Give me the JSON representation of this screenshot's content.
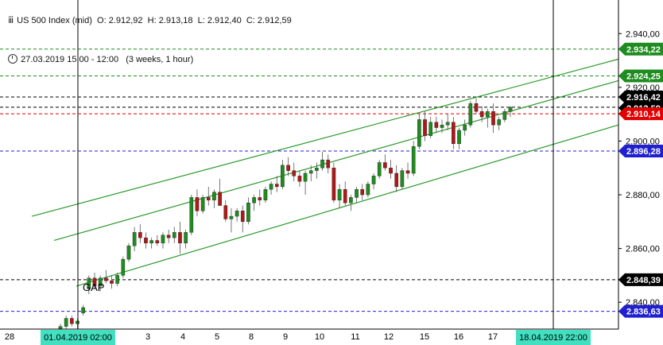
{
  "header": {
    "icon": "candlestick-icon",
    "instrument": "US 500 Index (mid)",
    "open": "O: 2.912,92",
    "high": "H: 2.913,18",
    "low": "L: 2.912,40",
    "close": "C: 2.912,59"
  },
  "range": {
    "icon": "clock-icon",
    "dates": "27.03.2019 15:00 - 12:00",
    "period": "(3 weeks, 1 hour)"
  },
  "annotation": {
    "gap_label": "GAP"
  },
  "chart_data": {
    "type": "candlestick",
    "ylim": [
      2830,
      2946
    ],
    "y_ticks": [
      {
        "value": 2940,
        "label": "2.940,00"
      },
      {
        "value": 2920,
        "label": "2.920,00"
      },
      {
        "value": 2900,
        "label": "2.900,00"
      },
      {
        "value": 2880,
        "label": "2.880,00"
      },
      {
        "value": 2860,
        "label": "2.860,00"
      },
      {
        "value": 2840,
        "label": "2.840,00"
      }
    ],
    "x_ticks": [
      "28",
      "3",
      "4",
      "5",
      "8",
      "9",
      "10",
      "11",
      "12",
      "15",
      "16",
      "17"
    ],
    "x_markers": [
      {
        "label": "01.04.2019 02:00",
        "color": "#40e0c0"
      },
      {
        "label": "18.04.2019 22:00",
        "color": "#40e0c0"
      }
    ],
    "price_levels": [
      {
        "value": 2934.22,
        "label": "2.934,22",
        "line_color": "#1e8c1e",
        "tag_color": "#1e8c1e"
      },
      {
        "value": 2924.25,
        "label": "2.924,25",
        "line_color": "#1e8c1e",
        "tag_color": "#1e8c1e"
      },
      {
        "value": 2916.42,
        "label": "2.916,42",
        "line_color": "#000000",
        "tag_color": "#000000"
      },
      {
        "value": 2912.59,
        "label": "2.912,59",
        "line_color": "#000000",
        "tag_color": "#000000"
      },
      {
        "value": 2910.14,
        "label": "2.910,14",
        "line_color": "#e00000",
        "tag_color": "#e00000"
      },
      {
        "value": 2896.28,
        "label": "2.896,28",
        "line_color": "#2020d0",
        "tag_color": "#2020d0"
      },
      {
        "value": 2848.39,
        "label": "2.848,39",
        "line_color": "#000000",
        "tag_color": "#000000"
      },
      {
        "value": 2836.63,
        "label": "2.836,63",
        "line_color": "#2020d0",
        "tag_color": "#2020d0"
      }
    ],
    "trend_channel": [
      {
        "from": [
          "01.04",
          2872.0
        ],
        "to": [
          "18.04",
          2930.5
        ],
        "color": "#2a9a2a"
      },
      {
        "from": [
          "01.04",
          2863.0
        ],
        "to": [
          "18.04",
          2922.5
        ],
        "color": "#2a9a2a"
      },
      {
        "from": [
          "01.04",
          2846.0
        ],
        "to": [
          "18.04",
          2906.0
        ],
        "color": "#2a9a2a"
      }
    ],
    "candles": {
      "bull_color": "#1e8c1e",
      "bear_color": "#b01818",
      "series": [
        [
          2830,
          2832,
          2829,
          2831
        ],
        [
          2831,
          2835,
          2830,
          2834
        ],
        [
          2834,
          2835,
          2831,
          2832
        ],
        [
          2832,
          2834,
          2830,
          2833
        ],
        [
          2836,
          2839,
          2835,
          2838
        ],
        [
          2845,
          2850,
          2843,
          2849
        ],
        [
          2849,
          2851,
          2845,
          2846
        ],
        [
          2846,
          2850,
          2844,
          2849
        ],
        [
          2849,
          2852,
          2847,
          2848
        ],
        [
          2848,
          2850,
          2845,
          2847
        ],
        [
          2847,
          2851,
          2846,
          2850
        ],
        [
          2850,
          2857,
          2849,
          2856
        ],
        [
          2856,
          2862,
          2855,
          2861
        ],
        [
          2861,
          2868,
          2859,
          2866
        ],
        [
          2866,
          2869,
          2862,
          2864
        ],
        [
          2864,
          2866,
          2860,
          2862
        ],
        [
          2862,
          2864,
          2860,
          2863
        ],
        [
          2863,
          2865,
          2861,
          2862
        ],
        [
          2862,
          2866,
          2860,
          2865
        ],
        [
          2865,
          2867,
          2862,
          2864
        ],
        [
          2864,
          2868,
          2862,
          2866
        ],
        [
          2866,
          2870,
          2858,
          2862
        ],
        [
          2862,
          2867,
          2860,
          2866
        ],
        [
          2866,
          2880,
          2865,
          2879
        ],
        [
          2879,
          2882,
          2872,
          2874
        ],
        [
          2874,
          2880,
          2873,
          2879
        ],
        [
          2879,
          2883,
          2876,
          2878
        ],
        [
          2878,
          2882,
          2875,
          2881
        ],
        [
          2881,
          2886,
          2878,
          2876
        ],
        [
          2876,
          2878,
          2870,
          2871
        ],
        [
          2871,
          2875,
          2866,
          2872
        ],
        [
          2872,
          2875,
          2870,
          2874
        ],
        [
          2874,
          2876,
          2866,
          2870
        ],
        [
          2870,
          2879,
          2869,
          2877
        ],
        [
          2877,
          2880,
          2874,
          2879
        ],
        [
          2879,
          2882,
          2876,
          2878
        ],
        [
          2878,
          2883,
          2877,
          2882
        ],
        [
          2882,
          2885,
          2880,
          2884
        ],
        [
          2884,
          2887,
          2881,
          2883
        ],
        [
          2883,
          2893,
          2882,
          2891
        ],
        [
          2891,
          2894,
          2887,
          2889
        ],
        [
          2889,
          2892,
          2885,
          2887
        ],
        [
          2887,
          2889,
          2883,
          2885
        ],
        [
          2885,
          2889,
          2880,
          2888
        ],
        [
          2888,
          2891,
          2885,
          2889
        ],
        [
          2889,
          2892,
          2886,
          2890
        ],
        [
          2890,
          2896,
          2889,
          2893
        ],
        [
          2893,
          2895,
          2888,
          2890
        ],
        [
          2890,
          2892,
          2877,
          2878
        ],
        [
          2878,
          2884,
          2875,
          2882
        ],
        [
          2882,
          2885,
          2876,
          2877
        ],
        [
          2877,
          2880,
          2874,
          2879
        ],
        [
          2879,
          2883,
          2877,
          2882
        ],
        [
          2882,
          2884,
          2878,
          2880
        ],
        [
          2880,
          2885,
          2879,
          2884
        ],
        [
          2884,
          2888,
          2882,
          2887
        ],
        [
          2887,
          2893,
          2886,
          2892
        ],
        [
          2892,
          2895,
          2889,
          2890
        ],
        [
          2890,
          2893,
          2886,
          2888
        ],
        [
          2888,
          2891,
          2881,
          2883
        ],
        [
          2883,
          2890,
          2882,
          2889
        ],
        [
          2889,
          2892,
          2886,
          2888
        ],
        [
          2888,
          2900,
          2887,
          2898
        ],
        [
          2898,
          2910,
          2897,
          2908
        ],
        [
          2908,
          2911,
          2900,
          2902
        ],
        [
          2902,
          2909,
          2901,
          2907
        ],
        [
          2907,
          2909,
          2903,
          2905
        ],
        [
          2905,
          2908,
          2903,
          2906
        ],
        [
          2906,
          2910,
          2904,
          2907
        ],
        [
          2907,
          2909,
          2897,
          2899
        ],
        [
          2899,
          2905,
          2897,
          2904
        ],
        [
          2904,
          2908,
          2902,
          2906
        ],
        [
          2906,
          2915,
          2905,
          2914
        ],
        [
          2914,
          2916,
          2910,
          2911
        ],
        [
          2911,
          2913,
          2907,
          2909
        ],
        [
          2909,
          2912,
          2905,
          2911
        ],
        [
          2911,
          2914,
          2903,
          2906
        ],
        [
          2906,
          2909,
          2904,
          2908
        ],
        [
          2908,
          2912,
          2907,
          2911
        ],
        [
          2911,
          2913,
          2909,
          2912.59
        ]
      ]
    }
  }
}
